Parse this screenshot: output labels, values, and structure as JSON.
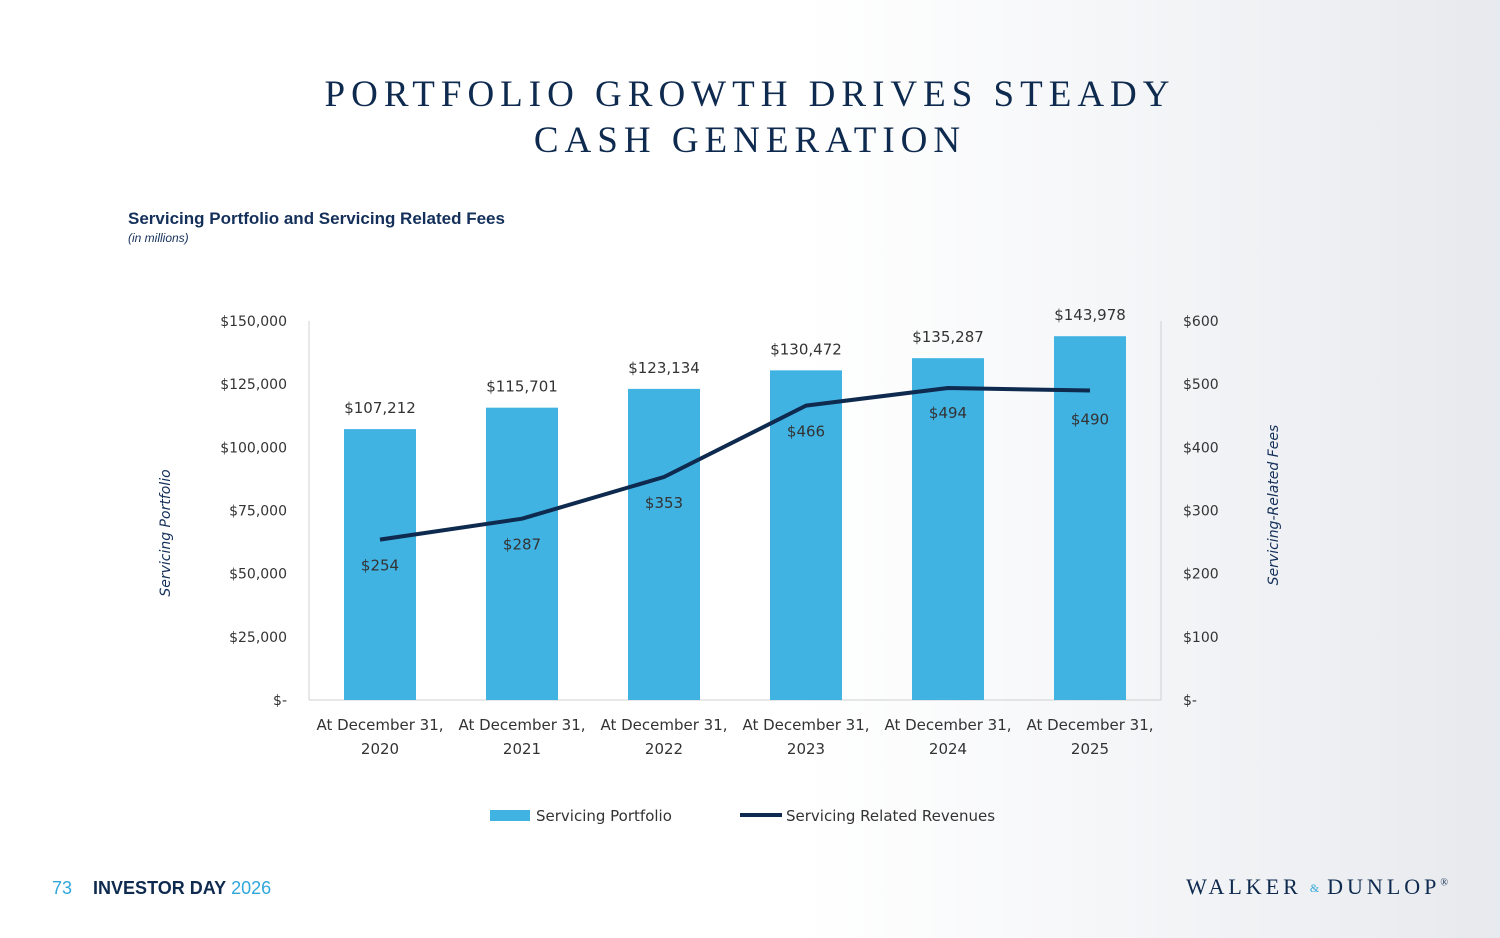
{
  "title_lines": [
    "PORTFOLIO GROWTH DRIVES STEADY",
    "CASH GENERATION"
  ],
  "chart_heading": "Servicing Portfolio and Servicing Related Fees",
  "chart_subheading": "(in millions)",
  "colors": {
    "bar": "#41b3e3",
    "line": "#0e2a4e",
    "title": "#0e2a4e",
    "accent": "#2fa7da"
  },
  "chart_data": {
    "type": "bar",
    "categories": [
      [
        "At December 31,",
        "2020"
      ],
      [
        "At December 31,",
        "2021"
      ],
      [
        "At December 31,",
        "2022"
      ],
      [
        "At December 31,",
        "2023"
      ],
      [
        "At December 31,",
        "2024"
      ],
      [
        "At December 31,",
        "2025"
      ]
    ],
    "series": [
      {
        "name": "Servicing Portfolio",
        "kind": "bar",
        "axis": "left",
        "values": [
          107212,
          115701,
          123134,
          130472,
          135287,
          143978
        ],
        "labels": [
          "$107,212",
          "$115,701",
          "$123,134",
          "$130,472",
          "$135,287",
          "$143,978"
        ]
      },
      {
        "name": "Servicing Related Revenues",
        "kind": "line",
        "axis": "right",
        "values": [
          254,
          287,
          353,
          466,
          494,
          490
        ],
        "labels": [
          "$254",
          "$287",
          "$353",
          "$466",
          "$494",
          "$490"
        ]
      }
    ],
    "left_axis": {
      "title": "Servicing Portfolio",
      "range": [
        0,
        150000
      ],
      "ticks": [
        0,
        25000,
        50000,
        75000,
        100000,
        125000,
        150000
      ],
      "tick_labels": [
        "$-",
        "$25,000",
        "$50,000",
        "$75,000",
        "$100,000",
        "$125,000",
        "$150,000"
      ]
    },
    "right_axis": {
      "title": "Servicing-Related Fees",
      "range": [
        0,
        600
      ],
      "ticks": [
        0,
        100,
        200,
        300,
        400,
        500,
        600
      ],
      "tick_labels": [
        "$-",
        "$100",
        "$200",
        "$300",
        "$400",
        "$500",
        "$600"
      ]
    },
    "legend_position": "bottom",
    "grid": false
  },
  "footer": {
    "page_number": "73",
    "label": "INVESTOR DAY",
    "year": "2026"
  },
  "logo": {
    "left": "WALKER",
    "amp": "&",
    "right": "DUNLOP",
    "mark": "®"
  }
}
